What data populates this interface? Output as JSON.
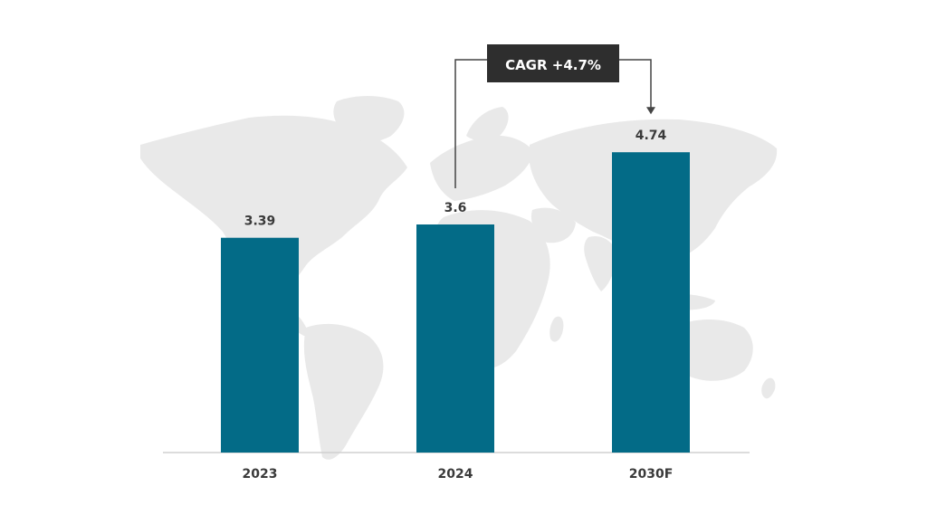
{
  "chart_data": {
    "type": "bar",
    "categories": [
      "2023",
      "2024",
      "2030F"
    ],
    "values": [
      3.39,
      3.6,
      4.74
    ],
    "data_labels": [
      "3.39",
      "3.6",
      "4.74"
    ],
    "title": "",
    "xlabel": "",
    "ylabel": "",
    "ylim": [
      0,
      5.5
    ],
    "grid": false,
    "legend": "none",
    "annotation": {
      "text": "CAGR +4.7%",
      "from_category": "2024",
      "to_category": "2030F"
    }
  },
  "colors": {
    "bar": "#036b87",
    "text": "#3a3a3a",
    "annotation_box": "#2e2e2e",
    "map": "#e9e9e9",
    "baseline": "#d0d0d0",
    "connector": "#444444"
  },
  "background": {
    "icon": "world-map-icon"
  }
}
